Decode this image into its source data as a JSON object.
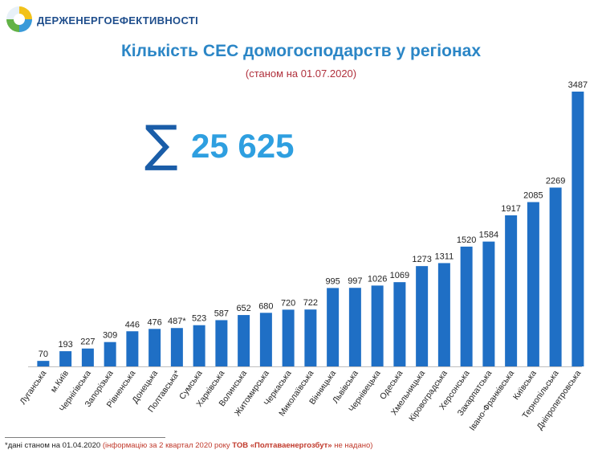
{
  "header": {
    "org_name": "ДЕРЖЕНЕРГОЕФЕКТИВНОСТІ",
    "logo_icon": "agency-logo-icon"
  },
  "summary": {
    "sigma_symbol": "∑",
    "total": "25 625"
  },
  "footnote": {
    "part1": "*дані станом на 01.04.2020 ",
    "part2": "(інформацію за 2 квартал 2020 року ",
    "part3": "ТОВ «Полтаваенергозбут»",
    "part4": " не надано)"
  },
  "colors": {
    "bar": "#1f6fc5",
    "title": "#2b86c6",
    "subtitle": "#b0303c",
    "total": "#2e9fe0",
    "sigma": "#1a5da8"
  },
  "chart_data": {
    "type": "bar",
    "title": "Кількість СЕС домогосподарств у регіонах",
    "subtitle": "(станом на 01.07.2020)",
    "xlabel": "",
    "ylabel": "",
    "ylim": [
      0,
      3487
    ],
    "grid": false,
    "legend": "none",
    "categories": [
      "Луганська",
      "м.Київ",
      "Чернігівська",
      "Запорізька",
      "Рівненська",
      "Донецька",
      "Полтавська*",
      "Сумська",
      "Харківська",
      "Волинська",
      "Житомирська",
      "Черкаська",
      "Миколаївська",
      "Вінницька",
      "Львівська",
      "Чернівецька",
      "Одеська",
      "Хмельницька",
      "Кіровоградська",
      "Херсонська",
      "Закарпатська",
      "Івано-Франківська",
      "Київська",
      "Тернопільська",
      "Дніпропетровська"
    ],
    "values": [
      70,
      193,
      227,
      309,
      446,
      476,
      487,
      523,
      587,
      652,
      680,
      720,
      722,
      995,
      997,
      1026,
      1069,
      1273,
      1311,
      1520,
      1584,
      1917,
      2085,
      2269,
      3487
    ],
    "value_labels": [
      "70",
      "193",
      "227",
      "309",
      "446",
      "476",
      "487*",
      "523",
      "587",
      "652",
      "680",
      "720",
      "722",
      "995",
      "997",
      "1026",
      "1069",
      "1273",
      "1311",
      "1520",
      "1584",
      "1917",
      "2085",
      "2269",
      "3487"
    ]
  }
}
